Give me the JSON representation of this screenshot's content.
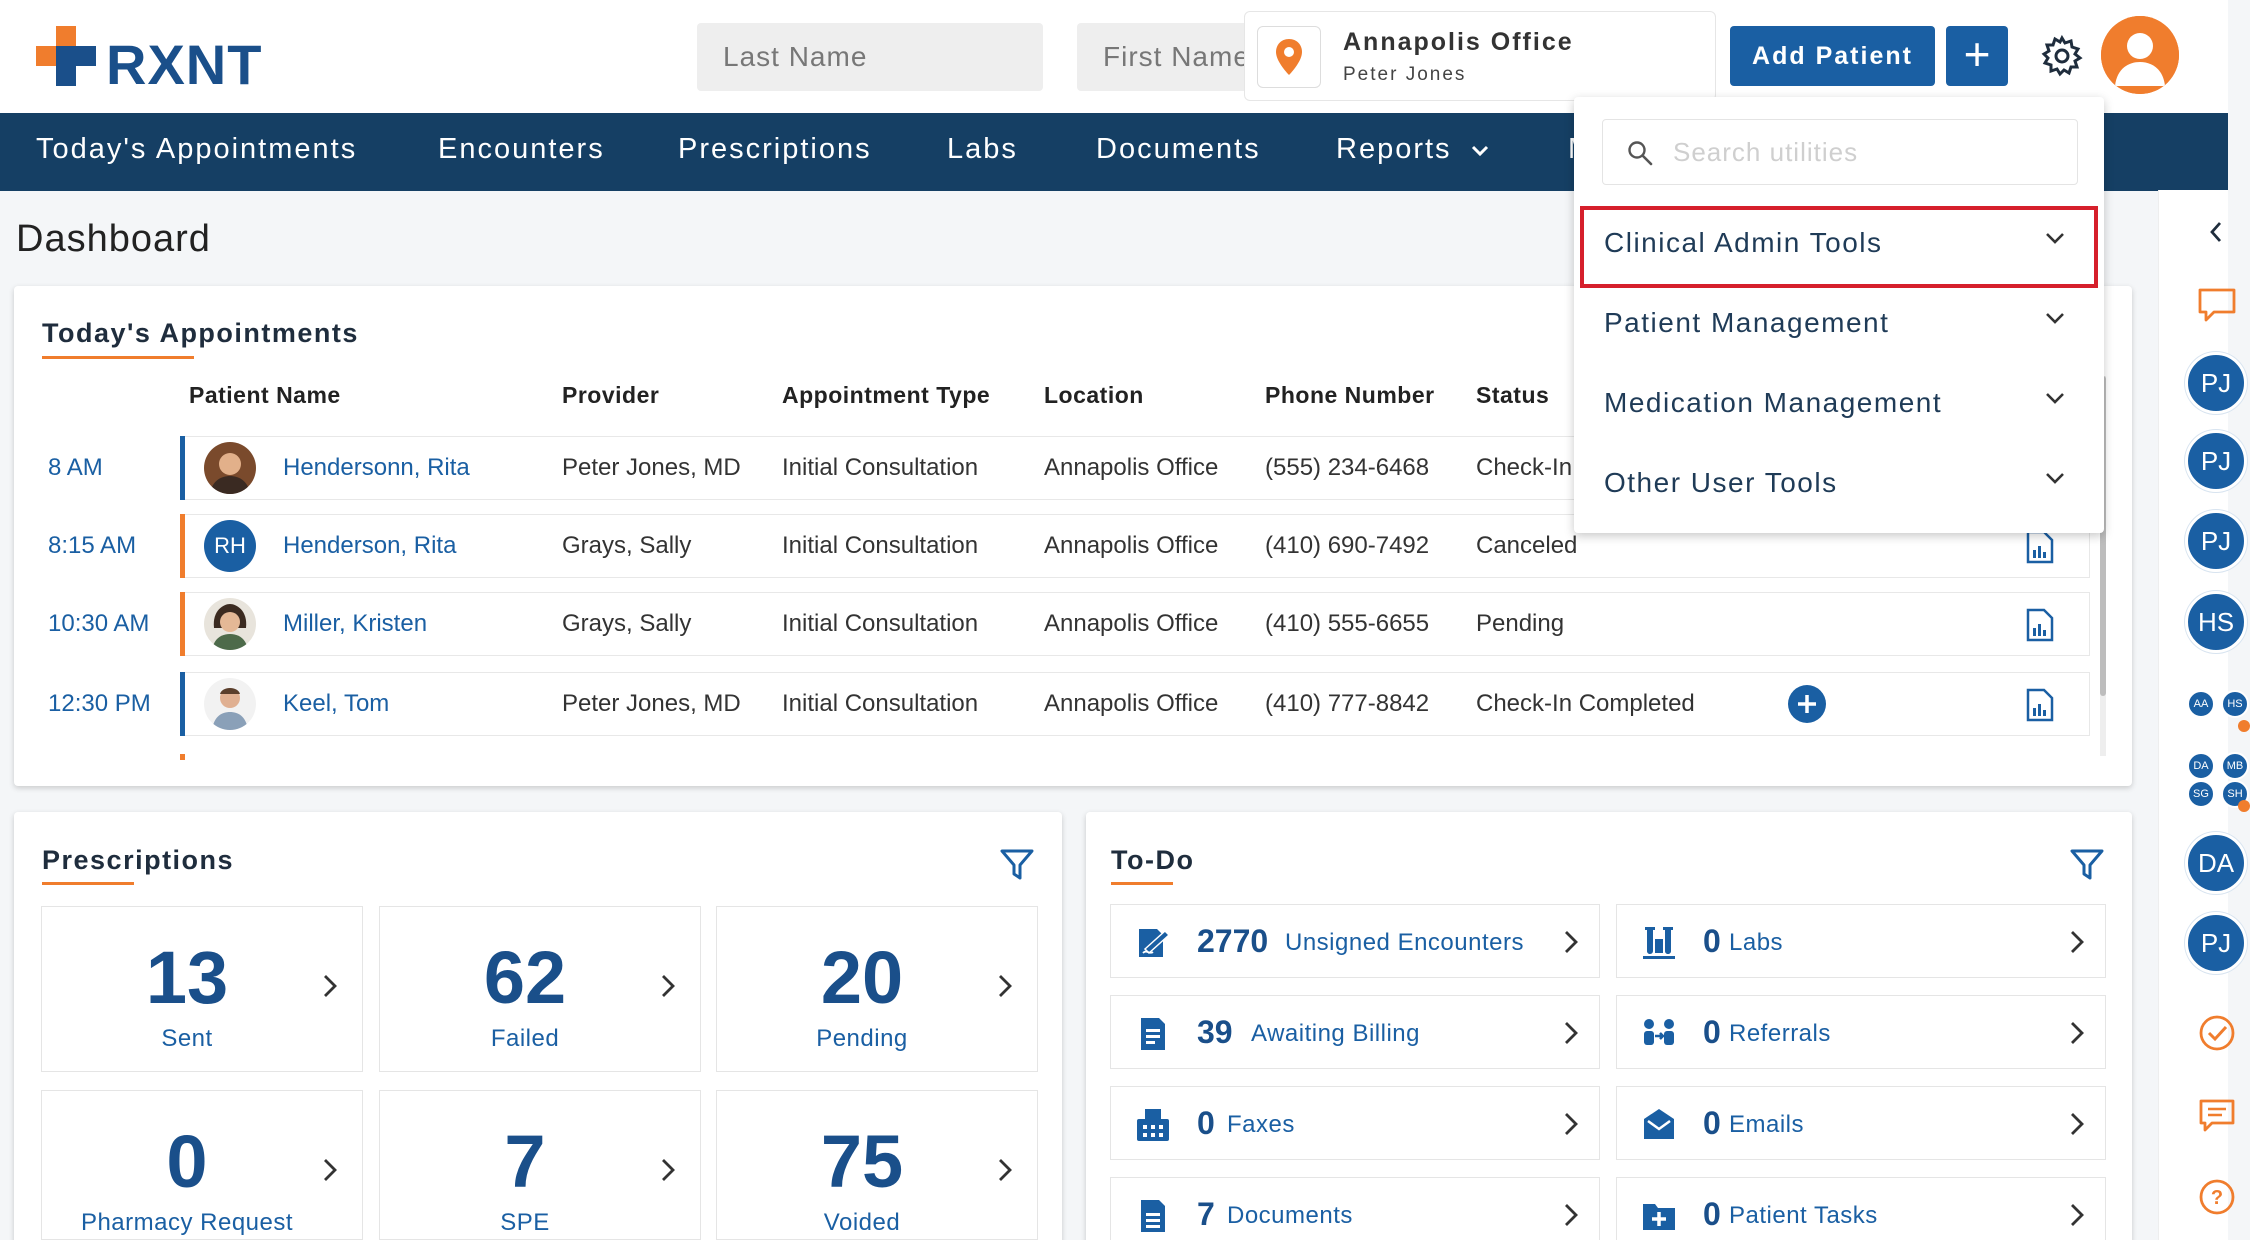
{
  "header": {
    "logo_text": "RXNT",
    "last_name_placeholder": "Last Name",
    "first_name_placeholder": "First Name",
    "office_name": "Annapolis Office",
    "office_user": "Peter Jones",
    "add_patient_label": "Add Patient",
    "add_label": "+"
  },
  "nav": {
    "items": [
      "Today's Appointments",
      "Encounters",
      "Prescriptions",
      "Labs",
      "Documents",
      "Reports",
      "M"
    ]
  },
  "page_title": "Dashboard",
  "appointments": {
    "title": "Today's Appointments",
    "columns": [
      "Patient Name",
      "Provider",
      "Appointment Type",
      "Location",
      "Phone Number",
      "Status"
    ],
    "rows": [
      {
        "time": "8 AM",
        "patient": "Hendersonn, Rita",
        "provider": "Peter Jones, MD",
        "type": "Initial Consultation",
        "location": "Annapolis Office",
        "phone": "(555) 234-6468",
        "status": "Check-In",
        "bar_color": "#1a5fa3",
        "avatar": "photo"
      },
      {
        "time": "8:15 AM",
        "patient": "Henderson, Rita",
        "provider": "Grays, Sally",
        "type": "Initial Consultation",
        "location": "Annapolis Office",
        "phone": "(410) 690-7492",
        "status": "Canceled",
        "bar_color": "#f07d2d",
        "avatar": "RH"
      },
      {
        "time": "10:30 AM",
        "patient": "Miller, Kristen",
        "provider": "Grays, Sally",
        "type": "Initial Consultation",
        "location": "Annapolis Office",
        "phone": "(410) 555-6655",
        "status": "Pending",
        "bar_color": "#f07d2d",
        "avatar": "photo"
      },
      {
        "time": "12:30 PM",
        "patient": "Keel, Tom",
        "provider": "Peter Jones, MD",
        "type": "Initial Consultation",
        "location": "Annapolis Office",
        "phone": "(410) 777-8842",
        "status": "Check-In Completed",
        "bar_color": "#1a5fa3",
        "avatar": "photo"
      }
    ]
  },
  "utilities_menu": {
    "search_placeholder": "Search utilities",
    "items": [
      "Clinical Admin Tools",
      "Patient Management",
      "Medication Management",
      "Other User Tools"
    ]
  },
  "prescriptions": {
    "title": "Prescriptions",
    "tiles": [
      {
        "value": "13",
        "label": "Sent"
      },
      {
        "value": "62",
        "label": "Failed"
      },
      {
        "value": "20",
        "label": "Pending"
      },
      {
        "value": "0",
        "label": "Pharmacy Request"
      },
      {
        "value": "7",
        "label": "SPE"
      },
      {
        "value": "75",
        "label": "Voided"
      }
    ]
  },
  "todo": {
    "title": "To-Do",
    "items": [
      {
        "count": "2770",
        "label": "Unsigned Encounters",
        "icon": "signature-icon"
      },
      {
        "count": "0",
        "label": "Labs",
        "icon": "flask-icon"
      },
      {
        "count": "39",
        "label": "Awaiting Billing",
        "icon": "billing-icon"
      },
      {
        "count": "0",
        "label": "Referrals",
        "icon": "referral-icon"
      },
      {
        "count": "0",
        "label": "Faxes",
        "icon": "fax-icon"
      },
      {
        "count": "0",
        "label": "Emails",
        "icon": "email-icon"
      },
      {
        "count": "7",
        "label": "Documents",
        "icon": "document-icon"
      },
      {
        "count": "0",
        "label": "Patient Tasks",
        "icon": "task-icon"
      }
    ]
  },
  "right_rail": {
    "avatars": [
      "PJ",
      "PJ",
      "PJ",
      "HS",
      "DA",
      "PJ"
    ],
    "mini_pair": [
      "AA",
      "HS"
    ],
    "mini_group": [
      "DA",
      "MB",
      "SG",
      "SH"
    ]
  },
  "colors": {
    "brand": "#1a5fa3",
    "nav": "#153f64",
    "accent": "#f07d2d",
    "highlight": "#d6202c"
  }
}
